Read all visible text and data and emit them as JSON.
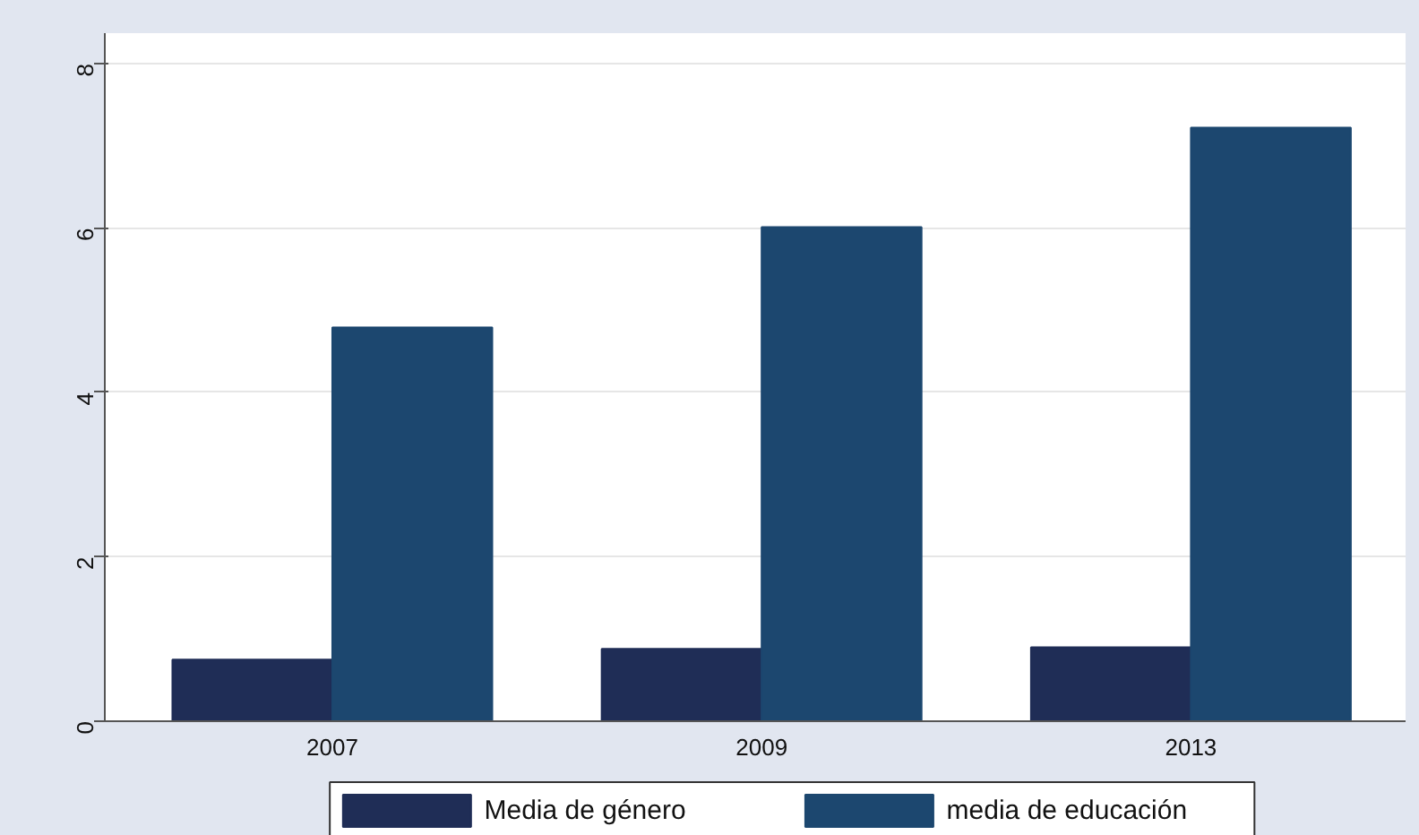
{
  "chart_data": {
    "type": "bar",
    "categories": [
      "2007",
      "2009",
      "2013"
    ],
    "series": [
      {
        "name": "Media de género",
        "color": "#1f2d56",
        "values": [
          0.75,
          0.88,
          0.9
        ]
      },
      {
        "name": "media de educación",
        "color": "#1c476f",
        "values": [
          4.79,
          6.01,
          7.22
        ]
      }
    ],
    "ylim": [
      0,
      8.37
    ],
    "yticks": [
      0,
      2,
      4,
      6,
      8
    ],
    "grid": "y",
    "legend": "bottom"
  }
}
